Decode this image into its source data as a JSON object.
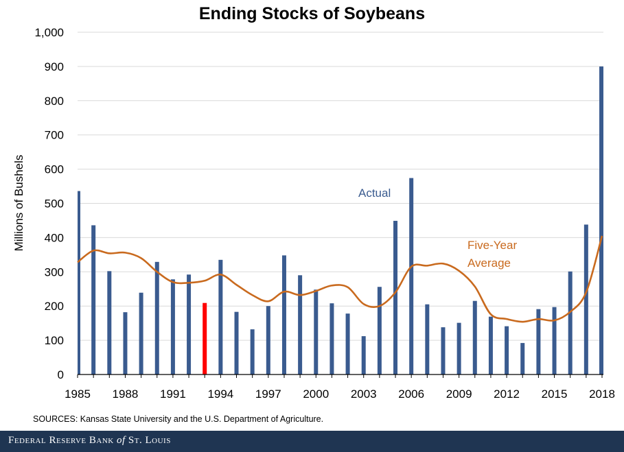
{
  "chart_data": {
    "type": "bar",
    "title": "Ending Stocks of Soybeans",
    "ylabel": "Millions of Bushels",
    "xlabel": "",
    "ylim": [
      0,
      1000
    ],
    "yticks": [
      "0",
      "100",
      "200",
      "300",
      "400",
      "500",
      "600",
      "700",
      "800",
      "900",
      "1,000"
    ],
    "xticks": [
      "1985",
      "1988",
      "1991",
      "1994",
      "1997",
      "2000",
      "2003",
      "2006",
      "2009",
      "2012",
      "2015",
      "2018"
    ],
    "years": [
      1985,
      1986,
      1987,
      1988,
      1989,
      1990,
      1991,
      1992,
      1993,
      1994,
      1995,
      1996,
      1997,
      1998,
      1999,
      2000,
      2001,
      2002,
      2003,
      2004,
      2005,
      2006,
      2007,
      2008,
      2009,
      2010,
      2011,
      2012,
      2013,
      2014,
      2015,
      2016,
      2017,
      2018
    ],
    "series": [
      {
        "name": "Actual",
        "type": "bar",
        "color": "#3a5b8f",
        "highlight_year": 1993,
        "highlight_color": "#ff0000",
        "values": [
          536,
          436,
          302,
          182,
          239,
          329,
          278,
          292,
          209,
          335,
          183,
          132,
          200,
          348,
          290,
          248,
          208,
          178,
          112,
          256,
          449,
          574,
          205,
          138,
          151,
          215,
          169,
          141,
          92,
          191,
          197,
          301,
          438,
          900
        ]
      },
      {
        "name": "Five-Year Average",
        "type": "line",
        "color": "#c96a1e",
        "values": [
          328,
          362,
          354,
          356,
          340,
          300,
          270,
          268,
          274,
          292,
          262,
          232,
          214,
          242,
          232,
          244,
          260,
          255,
          206,
          200,
          240,
          315,
          318,
          324,
          303,
          257,
          176,
          162,
          154,
          162,
          158,
          183,
          240,
          405
        ]
      }
    ],
    "annotations": [
      {
        "text": "Actual",
        "color": "#3a5b8f"
      },
      {
        "text": "Five-Year",
        "color": "#c96a1e"
      },
      {
        "text": "Average",
        "color": "#c96a1e"
      }
    ],
    "grid": true
  },
  "sources": "SOURCES: Kansas State University and the U.S. Department of Agriculture.",
  "footer": {
    "brand_part1": "Federal Reserve Bank",
    "brand_of": "of",
    "brand_part2": "St. Louis"
  }
}
